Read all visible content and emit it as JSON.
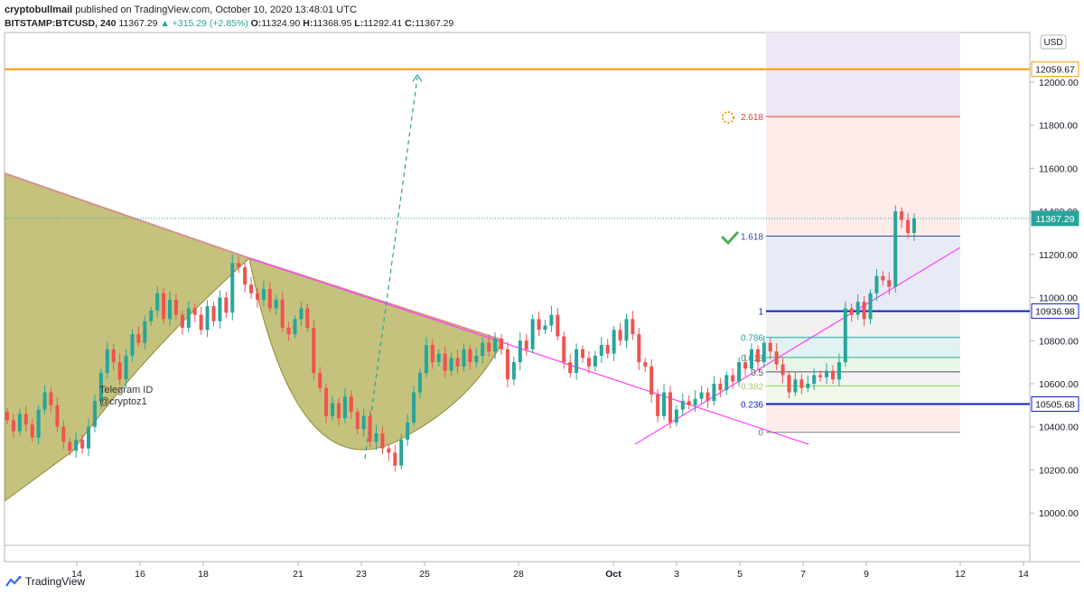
{
  "header": {
    "publisher": "cryptobullmail",
    "published_text": "published on TradingView.com, October 10, 2020 13:48:01 UTC",
    "symbol": "BITSTAMP:BTCUSD, 240",
    "last": "11367.29",
    "change": "▲ +315.29 (+2.85%)",
    "o_label": "O:",
    "o": "11324.90",
    "h_label": "H:",
    "h": "11368.95",
    "l_label": "L:",
    "l": "11292.41",
    "c_label": "C:",
    "c": "11367.29"
  },
  "footer": {
    "brand": "TradingView"
  },
  "colors": {
    "up": "#26a69a",
    "down": "#ef5350",
    "resistance": "#ff9800",
    "channel": "#ff40ff",
    "pattern_fill": "#b5b15a",
    "pattern_stroke": "#8e8a30",
    "fib_blue": "#0d1fc8",
    "fib_red": "#e53935",
    "projection": "#26a69a"
  },
  "chart_data": {
    "type": "candlestick",
    "currency": "USD",
    "x_ticks": [
      "14",
      "16",
      "18",
      "21",
      "23",
      "25",
      "28",
      "Oct",
      "3",
      "5",
      "7",
      "9",
      "12",
      "14"
    ],
    "y_ticks": [
      10000,
      10200,
      10400,
      10600,
      10800,
      11000,
      11200,
      11400,
      11600,
      11800,
      12000
    ],
    "ylim": [
      9850,
      12230
    ],
    "last_price": 11367.29,
    "price_tags": [
      {
        "value": 12059.67,
        "label": "12059.67",
        "kind": "resistance"
      },
      {
        "value": 11367.29,
        "label": "11367.29",
        "kind": "last"
      },
      {
        "value": 10936.98,
        "label": "10936.98",
        "kind": "fib_blue"
      },
      {
        "value": 10505.68,
        "label": "10505.68",
        "kind": "fib_blue"
      }
    ],
    "fib_levels": [
      {
        "ratio": "2.618",
        "value": 11840,
        "color": "#e53935"
      },
      {
        "ratio": "1.618",
        "value": 11285,
        "color": "#3949ab"
      },
      {
        "ratio": "1",
        "value": 10936.98,
        "color": "#0d1fc8"
      },
      {
        "ratio": "0.786",
        "value": 10815,
        "color": "#26a69a"
      },
      {
        "ratio": "0.618",
        "value": 10722,
        "color": "#26a69a"
      },
      {
        "ratio": "0.5",
        "value": 10655,
        "color": "#555555"
      },
      {
        "ratio": "0.382",
        "value": 10590,
        "color": "#9ccc65"
      },
      {
        "ratio": "0.236",
        "value": 10505.68,
        "color": "#0d1fc8"
      },
      {
        "ratio": "0",
        "value": 10375,
        "color": "#777777"
      }
    ],
    "annotation": {
      "line1": "Telegram ID",
      "line2": "@cryptoz1"
    },
    "closes": [
      10430,
      10380,
      10460,
      10410,
      10350,
      10480,
      10560,
      10500,
      10400,
      10330,
      10290,
      10340,
      10300,
      10400,
      10520,
      10650,
      10760,
      10700,
      10620,
      10730,
      10830,
      10790,
      10890,
      10940,
      11020,
      10900,
      10990,
      10920,
      10860,
      10950,
      10920,
      10850,
      10960,
      10890,
      11000,
      10930,
      11160,
      11140,
      11060,
      11020,
      10990,
      11040,
      10950,
      10990,
      10860,
      10830,
      10900,
      10950,
      10860,
      10650,
      10580,
      10450,
      10510,
      10440,
      10540,
      10470,
      10390,
      10450,
      10330,
      10370,
      10300,
      10280,
      10220,
      10340,
      10420,
      10560,
      10650,
      10780,
      10700,
      10740,
      10660,
      10720,
      10680,
      10760,
      10700,
      10730,
      10790,
      10750,
      10810,
      10760,
      10620,
      10700,
      10800,
      10760,
      10900,
      10850,
      10870,
      10920,
      10820,
      10700,
      10650,
      10760,
      10720,
      10680,
      10730,
      10780,
      10740,
      10850,
      10800,
      10900,
      10830,
      10700,
      10680,
      10550,
      10450,
      10560,
      10420,
      10480,
      10520,
      10500,
      10530,
      10560,
      10520,
      10600,
      10570,
      10640,
      10610,
      10700,
      10670,
      10760,
      10700,
      10790,
      10750,
      10690,
      10640,
      10560,
      10620,
      10580,
      10600,
      10640,
      10630,
      10660,
      10620,
      10700,
      10950,
      10920,
      10980,
      10900,
      11020,
      11100,
      11080,
      11050,
      11400,
      11360,
      11300,
      11367.29
    ]
  }
}
